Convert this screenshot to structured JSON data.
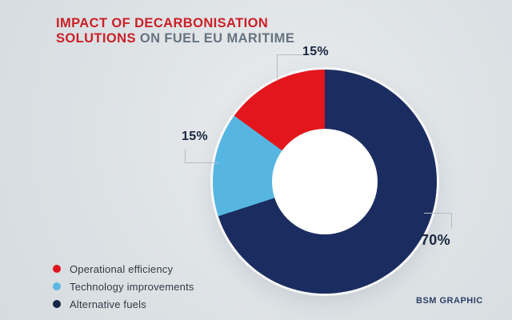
{
  "title": {
    "line1": "IMPACT OF DECARBONISATION",
    "line2_red": "SOLUTIONS",
    "line2_gray": " ON FUEL EU MARITIME"
  },
  "chart_data": {
    "type": "pie",
    "subtype": "donut",
    "title": "Impact of decarbonisation solutions on Fuel EU Maritime",
    "start_angle_deg": 0,
    "direction": "clockwise",
    "inner_radius_ratio": 0.47,
    "segments": [
      {
        "label": "Alternative fuels",
        "value": 70,
        "pct_label": "70%",
        "color": "#1b2d60"
      },
      {
        "label": "Technology improvements",
        "value": 15,
        "pct_label": "15%",
        "color": "#56b6e1"
      },
      {
        "label": "Operational efficiency",
        "value": 15,
        "pct_label": "15%",
        "color": "#e4161d"
      }
    ],
    "legend_position": "bottom-left"
  },
  "legend": {
    "items": [
      {
        "label": "Operational efficiency",
        "color": "#e0141c"
      },
      {
        "label": "Technology improvements",
        "color": "#5cb8e2"
      },
      {
        "label": "Alternative fuels",
        "color": "#182448"
      }
    ]
  },
  "footer": {
    "credit": "BSM GRAPHIC"
  },
  "colors": {
    "title_red": "#ca2027",
    "title_gray": "#67737f",
    "pct_label": "#1c2740",
    "legend_text": "#333b47",
    "credit_text": "#2e3f66",
    "callout_line": "#b6bcc2",
    "background_light": "#e9ecee",
    "background_dark": "#d5dbdf",
    "donut_hole": "#ffffff"
  }
}
